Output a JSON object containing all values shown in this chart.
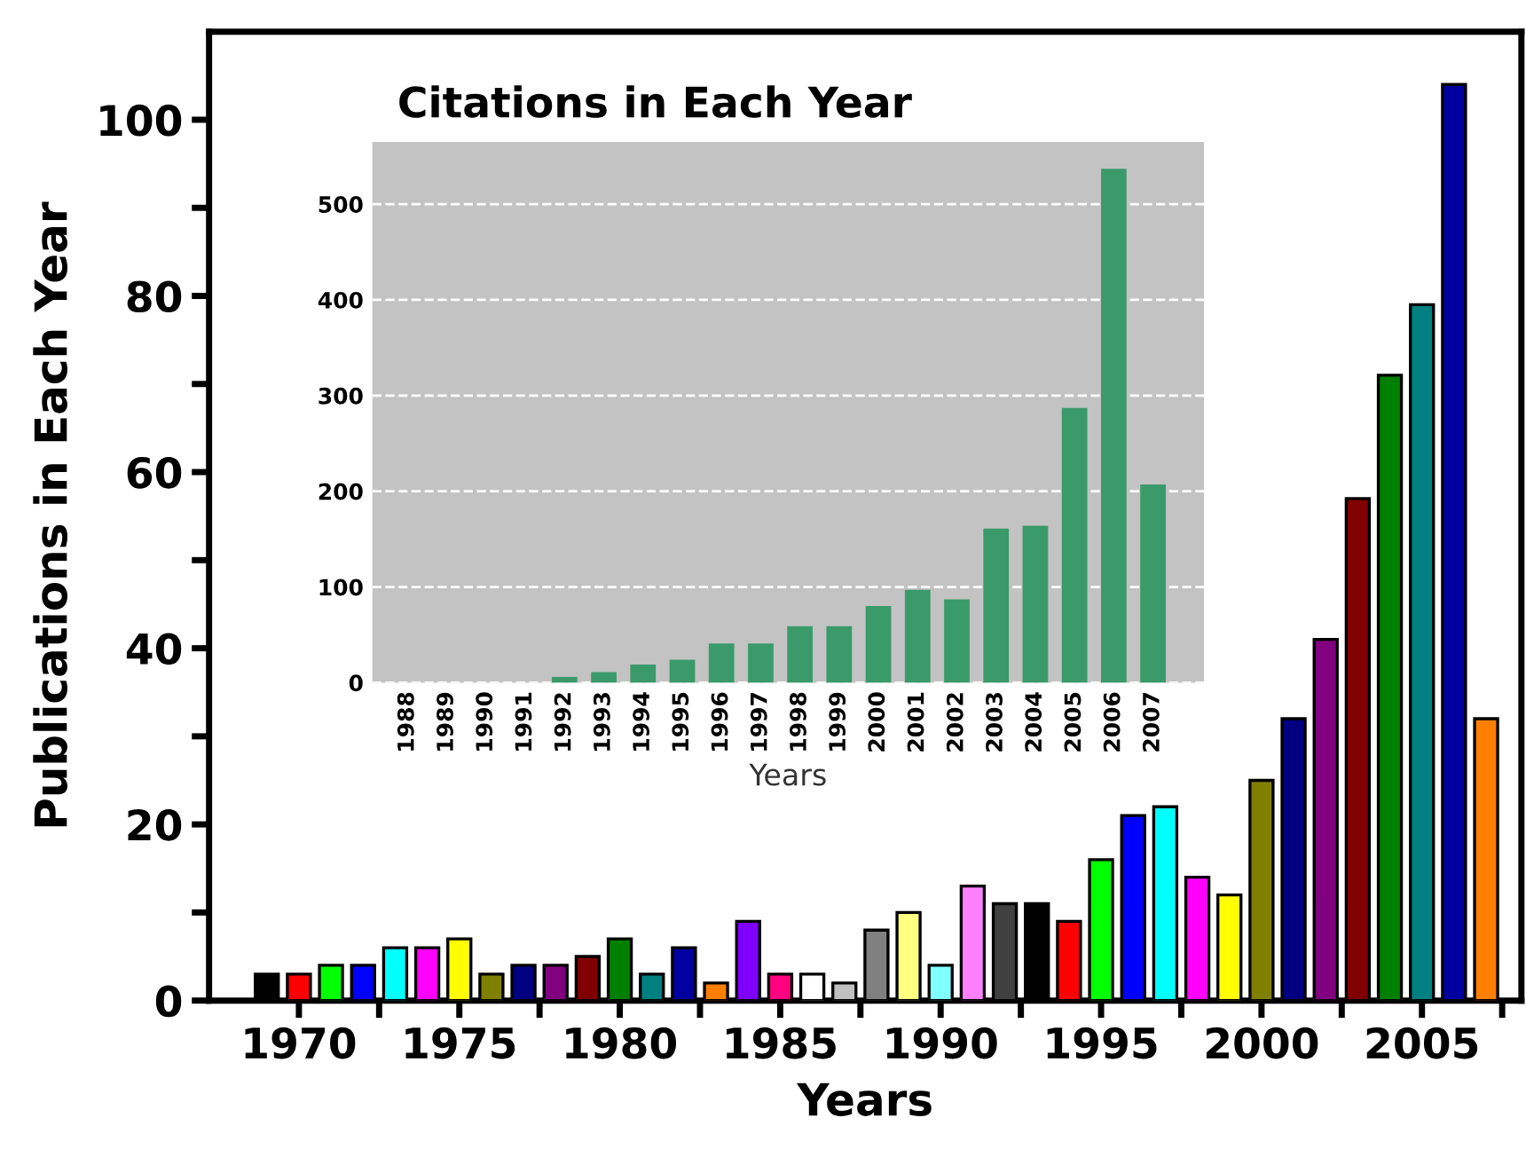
{
  "chart_data": [
    {
      "type": "bar",
      "xlabel": "Years",
      "ylabel": "Publications in Each Year",
      "x": [
        1969,
        1970,
        1971,
        1972,
        1973,
        1974,
        1975,
        1976,
        1977,
        1978,
        1979,
        1980,
        1981,
        1982,
        1983,
        1984,
        1985,
        1986,
        1987,
        1988,
        1989,
        1990,
        1991,
        1992,
        1993,
        1994,
        1995,
        1996,
        1997,
        1998,
        1999,
        2000,
        2001,
        2002,
        2003,
        2004,
        2005,
        2006,
        2007
      ],
      "values": [
        3,
        3,
        4,
        4,
        6,
        6,
        7,
        3,
        4,
        4,
        5,
        7,
        3,
        6,
        2,
        9,
        3,
        3,
        2,
        8,
        10,
        4,
        13,
        11,
        11,
        9,
        16,
        21,
        22,
        14,
        12,
        25,
        32,
        41,
        57,
        71,
        79,
        104,
        32
      ],
      "colors": [
        "#000000",
        "#ff0000",
        "#00ff00",
        "#0000ff",
        "#00ffff",
        "#ff00ff",
        "#ffff00",
        "#808000",
        "#000080",
        "#800080",
        "#800000",
        "#008000",
        "#008080",
        "#0000a0",
        "#ff8000",
        "#8000ff",
        "#ff0080",
        "#ffffff",
        "#c0c0c0",
        "#808080",
        "#ffff80",
        "#80ffff",
        "#ff80ff",
        "#404040",
        "#000000",
        "#ff0000",
        "#00ff00",
        "#0000ff",
        "#00ffff",
        "#ff00ff",
        "#ffff00",
        "#808000",
        "#000080",
        "#800080",
        "#800000",
        "#008000",
        "#008080",
        "#0000a0",
        "#ff8000"
      ],
      "xlim": [
        1967.2,
        2008.1
      ],
      "ylim": [
        0,
        110
      ],
      "xticks": [
        {
          "value": 1970,
          "label": "1970"
        },
        {
          "value": 1972.5,
          "label": null
        },
        {
          "value": 1975,
          "label": "1975"
        },
        {
          "value": 1977.5,
          "label": null
        },
        {
          "value": 1980,
          "label": "1980"
        },
        {
          "value": 1982.5,
          "label": null
        },
        {
          "value": 1985,
          "label": "1985"
        },
        {
          "value": 1987.5,
          "label": null
        },
        {
          "value": 1990,
          "label": "1990"
        },
        {
          "value": 1992.5,
          "label": null
        },
        {
          "value": 1995,
          "label": "1995"
        },
        {
          "value": 1997.5,
          "label": null
        },
        {
          "value": 2000,
          "label": "2000"
        },
        {
          "value": 2002.5,
          "label": null
        },
        {
          "value": 2005,
          "label": "2005"
        },
        {
          "value": 2007.5,
          "label": null
        }
      ],
      "yticks": [
        0,
        {
          "value": 10,
          "label": null
        },
        20,
        {
          "value": 30,
          "label": null
        },
        40,
        {
          "value": 50,
          "label": null
        },
        60,
        {
          "value": 70,
          "label": null
        },
        80,
        {
          "value": 90,
          "label": null
        },
        100
      ],
      "grid": false,
      "legend": false
    },
    {
      "type": "bar",
      "title": "Citations in Each Year",
      "xlabel": "Years",
      "categories": [
        "1988",
        "1989",
        "1990",
        "1991",
        "1992",
        "1993",
        "1994",
        "1995",
        "1996",
        "1997",
        "1998",
        "1999",
        "2000",
        "2001",
        "2002",
        "2003",
        "2004",
        "2005",
        "2006",
        "2007"
      ],
      "values": [
        0,
        0,
        0,
        0,
        6,
        11,
        19,
        24,
        41,
        41,
        59,
        59,
        80,
        97,
        87,
        161,
        164,
        287,
        537,
        207
      ],
      "color": "#3a9a6a",
      "ylim": [
        0,
        565
      ],
      "yticks": [
        0,
        100,
        200,
        300,
        400,
        500
      ],
      "grid": "y",
      "legend": false
    }
  ]
}
